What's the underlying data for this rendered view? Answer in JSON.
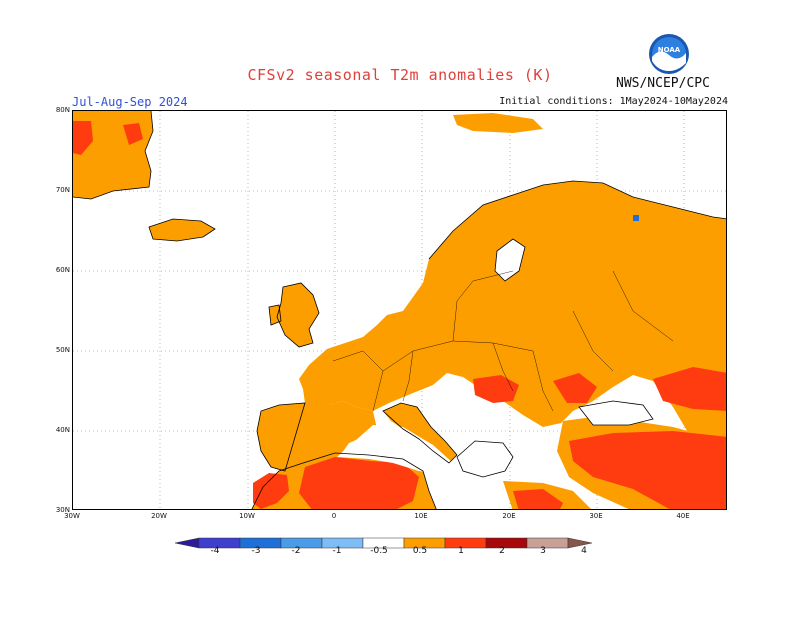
{
  "header": {
    "title": "CFSv2 seasonal T2m anomalies (K)",
    "period": "Jul-Aug-Sep 2024",
    "initial_conditions": "Initial conditions: 1May2024-10May2024",
    "agency": "NWS/NCEP/CPC",
    "logo_text": "NOAA"
  },
  "map": {
    "lat_labels": [
      "80N",
      "70N",
      "60N",
      "50N",
      "40N",
      "30N"
    ],
    "lon_labels": [
      "30W",
      "20W",
      "10W",
      "0",
      "10E",
      "20E",
      "30E",
      "40E"
    ],
    "extent": {
      "lon": [
        -30,
        45
      ],
      "lat": [
        30,
        80
      ]
    }
  },
  "colorbar": {
    "labels": [
      "-4",
      "-3",
      "-2",
      "-1",
      "-0.5",
      "0.5",
      "1",
      "2",
      "3",
      "4"
    ],
    "colors": [
      "#2b1d9a",
      "#3f3fcf",
      "#1f6fd8",
      "#4a9be8",
      "#7dbcf5",
      "#ffffff",
      "#fd9e00",
      "#ff3c10",
      "#a8080b",
      "#c9a095",
      "#87564a"
    ]
  },
  "colors": {
    "warm1": "#fd9e00",
    "warm2": "#ff3c10",
    "title": "#e0403a",
    "period": "#3050d8"
  }
}
